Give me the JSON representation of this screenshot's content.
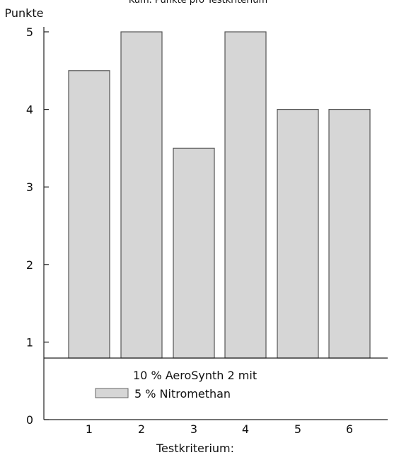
{
  "chart_data": {
    "type": "bar",
    "title": "Kum. Punkte pro Testkriterium",
    "ylabel": "Punkte",
    "xlabel": "Testkriterium:",
    "categories": [
      "1",
      "2",
      "3",
      "4",
      "5",
      "6"
    ],
    "series": [
      {
        "name": "10 % AeroSynth 2 mit 5 % Nitromethan",
        "values": [
          4.5,
          5,
          3.5,
          5,
          4,
          4
        ]
      }
    ],
    "ylim": [
      0,
      5
    ],
    "yticks": [
      "0",
      "1",
      "2",
      "3",
      "4",
      "5"
    ],
    "legend": {
      "line1": "10 % AeroSynth 2 mit",
      "line2": "5 % Nitromethan",
      "position": "bottom-center"
    },
    "grid": false,
    "colors": {
      "bar_fill": "#d6d6d6",
      "bar_stroke": "#555555",
      "axis": "#222222"
    }
  }
}
